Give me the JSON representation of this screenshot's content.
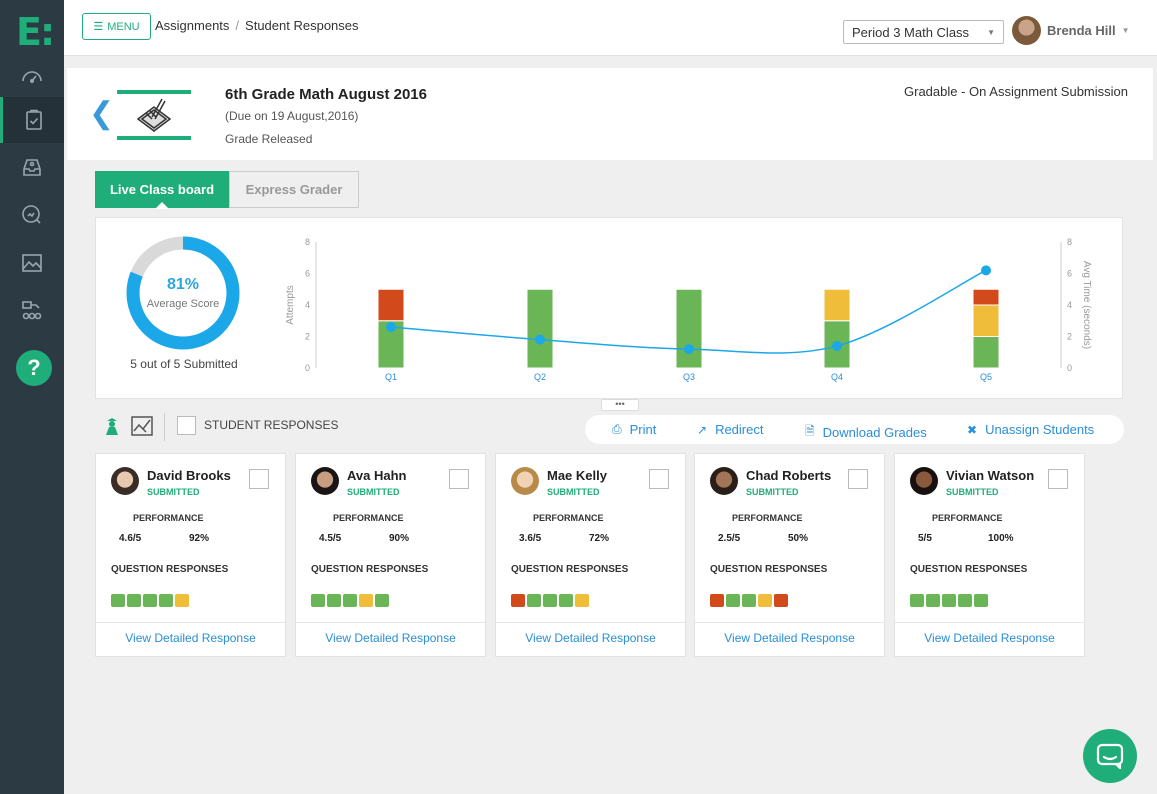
{
  "app": {
    "logo": "E:",
    "menu_label": "MENU",
    "breadcrumbs": [
      "Assignments",
      "Student Responses"
    ],
    "class_select": "Period 3 Math Class",
    "user_name": "Brenda Hill"
  },
  "sidebar": {
    "items": [
      {
        "icon": "dashboard-gauge-icon",
        "active": false
      },
      {
        "icon": "clipboard-check-icon",
        "active": true
      },
      {
        "icon": "inbox-icon",
        "active": false
      },
      {
        "icon": "search-chart-icon",
        "active": false
      },
      {
        "icon": "image-chart-icon",
        "active": false
      },
      {
        "icon": "users-group-icon",
        "active": false
      }
    ],
    "help_label": "?"
  },
  "assignment": {
    "title": "6th Grade Math August 2016",
    "due": "(Due on 19 August,2016)",
    "status": "Grade Released",
    "gradable": "Gradable - On Assignment Submission"
  },
  "tabs": {
    "live": "Live Class board",
    "express": "Express Grader"
  },
  "summary": {
    "average_score_text": "81%",
    "average_score_value": 0.81,
    "average_label": "Average Score",
    "submitted": "5 out of 5 Submitted"
  },
  "chart_data": {
    "type": "bar",
    "categories": [
      "Q1",
      "Q2",
      "Q3",
      "Q4",
      "Q5"
    ],
    "ylabel": "Attempts",
    "y2label": "Avg Time (seconds)",
    "ylim": [
      0,
      8
    ],
    "y2lim": [
      0,
      8
    ],
    "yticks": [
      0,
      2,
      4,
      6,
      8
    ],
    "colors": {
      "correct": "#6ab656",
      "partial": "#f0bd3a",
      "incorrect": "#d24a1c",
      "line": "#1ba7e8"
    },
    "series": [
      {
        "key": "correct",
        "values": [
          3,
          5,
          5,
          3,
          2
        ]
      },
      {
        "key": "partial",
        "values": [
          0,
          0,
          0,
          2,
          2
        ]
      },
      {
        "key": "incorrect",
        "values": [
          2,
          0,
          0,
          0,
          1
        ]
      }
    ],
    "line": {
      "values": [
        2.6,
        1.8,
        1.2,
        1.4,
        6.2
      ]
    },
    "grid": false
  },
  "actions": {
    "student_responses": "STUDENT RESPONSES",
    "print": "Print",
    "redirect": "Redirect",
    "download": "Download Grades",
    "unassign": "Unassign Students"
  },
  "students": [
    {
      "name": "David Brooks",
      "status": "SUBMITTED",
      "perf_label": "PERFORMANCE",
      "score": "4.6/5",
      "pct": "92%",
      "qr_label": "QUESTION RESPONSES",
      "responses": [
        "g",
        "g",
        "g",
        "g",
        "y"
      ],
      "link": "View Detailed Response"
    },
    {
      "name": "Ava Hahn",
      "status": "SUBMITTED",
      "perf_label": "PERFORMANCE",
      "score": "4.5/5",
      "pct": "90%",
      "qr_label": "QUESTION RESPONSES",
      "responses": [
        "g",
        "g",
        "g",
        "y",
        "g"
      ],
      "link": "View Detailed Response"
    },
    {
      "name": "Mae Kelly",
      "status": "SUBMITTED",
      "perf_label": "PERFORMANCE",
      "score": "3.6/5",
      "pct": "72%",
      "qr_label": "QUESTION RESPONSES",
      "responses": [
        "r",
        "g",
        "g",
        "g",
        "y"
      ],
      "link": "View Detailed Response"
    },
    {
      "name": "Chad Roberts",
      "status": "SUBMITTED",
      "perf_label": "PERFORMANCE",
      "score": "2.5/5",
      "pct": "50%",
      "qr_label": "QUESTION RESPONSES",
      "responses": [
        "r",
        "g",
        "g",
        "y",
        "r"
      ],
      "link": "View Detailed Response"
    },
    {
      "name": "Vivian Watson",
      "status": "SUBMITTED",
      "perf_label": "PERFORMANCE",
      "score": "5/5",
      "pct": "100%",
      "qr_label": "QUESTION RESPONSES",
      "responses": [
        "g",
        "g",
        "g",
        "g",
        "g"
      ],
      "link": "View Detailed Response"
    }
  ]
}
